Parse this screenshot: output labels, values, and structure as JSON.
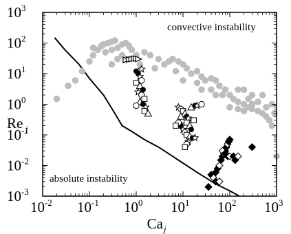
{
  "chart_data": {
    "type": "scatter",
    "title": "",
    "xlabel": "Ca",
    "xlabel_subscript": "j",
    "ylabel": "Re",
    "ylabel_subscript": "j",
    "xscale": "log",
    "yscale": "log",
    "xlim": [
      0.01,
      1000
    ],
    "ylim": [
      0.001,
      1000
    ],
    "x_ticks": [
      {
        "base": "10",
        "exp": "-2"
      },
      {
        "base": "10",
        "exp": "-1"
      },
      {
        "base": "10",
        "exp": "0"
      },
      {
        "base": "10",
        "exp": "1"
      },
      {
        "base": "10",
        "exp": "2"
      },
      {
        "base": "10",
        "exp": "3"
      }
    ],
    "y_ticks": [
      {
        "base": "10",
        "exp": "-3"
      },
      {
        "base": "10",
        "exp": "-2"
      },
      {
        "base": "10",
        "exp": "-1"
      },
      {
        "base": "10",
        "exp": "0"
      },
      {
        "base": "10",
        "exp": "1"
      },
      {
        "base": "10",
        "exp": "2"
      },
      {
        "base": "10",
        "exp": "3"
      }
    ],
    "grid": false,
    "legend": "none",
    "annotations": [
      {
        "text": "convective instability",
        "x": 40,
        "y": 300
      },
      {
        "text": "absolute instability",
        "x": 0.022,
        "y": 0.004
      }
    ],
    "colors": {
      "background_data": "#bdbdbd",
      "boundary": "#000000",
      "markers": "#000000"
    },
    "series": [
      {
        "marker": "curve",
        "color": "#000000",
        "points": [
          [
            0.018,
            150
          ],
          [
            0.03,
            60
          ],
          [
            0.06,
            20
          ],
          [
            0.1,
            7
          ],
          [
            0.2,
            2
          ],
          [
            0.35,
            0.5
          ],
          [
            0.5,
            0.2
          ],
          [
            0.8,
            0.13
          ],
          [
            1.5,
            0.07
          ],
          [
            3,
            0.04
          ],
          [
            6,
            0.02
          ],
          [
            10,
            0.012
          ],
          [
            20,
            0.006
          ],
          [
            50,
            0.0025
          ],
          [
            100,
            0.0015
          ],
          [
            160,
            0.001
          ]
        ]
      },
      {
        "marker": "circle-filled",
        "color": "#bdbdbd",
        "points": [
          [
            0.02,
            1.5
          ],
          [
            0.035,
            4
          ],
          [
            0.05,
            6
          ],
          [
            0.07,
            12
          ],
          [
            0.1,
            25
          ],
          [
            0.12,
            40
          ],
          [
            0.15,
            60
          ],
          [
            0.12,
            70
          ],
          [
            0.18,
            80
          ],
          [
            0.2,
            90
          ],
          [
            0.25,
            100
          ],
          [
            0.3,
            110
          ],
          [
            0.35,
            120
          ],
          [
            0.22,
            50
          ],
          [
            0.3,
            60
          ],
          [
            0.4,
            70
          ],
          [
            0.5,
            90
          ],
          [
            0.6,
            100
          ],
          [
            0.7,
            80
          ],
          [
            0.8,
            60
          ],
          [
            0.5,
            40
          ],
          [
            0.4,
            30
          ],
          [
            0.3,
            20
          ],
          [
            0.6,
            30
          ],
          [
            1,
            40
          ],
          [
            1.5,
            50
          ],
          [
            2,
            40
          ],
          [
            3,
            30
          ],
          [
            1.2,
            20
          ],
          [
            2.5,
            15
          ],
          [
            4,
            20
          ],
          [
            5,
            25
          ],
          [
            6,
            30
          ],
          [
            8,
            25
          ],
          [
            10,
            20
          ],
          [
            7,
            12
          ],
          [
            12,
            15
          ],
          [
            15,
            10
          ],
          [
            20,
            12
          ],
          [
            25,
            8
          ],
          [
            10,
            6
          ],
          [
            20,
            5
          ],
          [
            30,
            6
          ],
          [
            40,
            7
          ],
          [
            50,
            6
          ],
          [
            25,
            3
          ],
          [
            40,
            3
          ],
          [
            60,
            4
          ],
          [
            80,
            3
          ],
          [
            50,
            2
          ],
          [
            70,
            2
          ],
          [
            100,
            2
          ],
          [
            120,
            1.5
          ],
          [
            150,
            1.2
          ],
          [
            200,
            1
          ],
          [
            250,
            1.5
          ],
          [
            300,
            1
          ],
          [
            100,
            0.8
          ],
          [
            150,
            0.7
          ],
          [
            200,
            0.6
          ],
          [
            250,
            0.8
          ],
          [
            300,
            0.7
          ],
          [
            400,
            0.6
          ],
          [
            500,
            0.5
          ],
          [
            600,
            0.4
          ],
          [
            700,
            0.3
          ],
          [
            800,
            0.2
          ],
          [
            400,
            1.2
          ],
          [
            600,
            0.8
          ],
          [
            800,
            1
          ],
          [
            900,
            0.5
          ],
          [
            1000,
            0.02
          ],
          [
            500,
            2
          ],
          [
            300,
            2
          ],
          [
            200,
            3
          ],
          [
            150,
            3
          ]
        ]
      },
      {
        "marker": "triangle-right",
        "color": "#000000",
        "points": [
          [
            0.6,
            28
          ],
          [
            0.7,
            29
          ],
          [
            0.8,
            30
          ],
          [
            0.9,
            31
          ],
          [
            1,
            31
          ],
          [
            1.1,
            30
          ]
        ]
      },
      {
        "marker": "mixed-open",
        "color": "#000000",
        "points": [
          [
            1.1,
            10
          ],
          [
            1.2,
            8
          ],
          [
            1.3,
            6
          ],
          [
            1.0,
            5
          ],
          [
            1.2,
            4
          ],
          [
            1.4,
            3
          ],
          [
            1.1,
            2.5
          ],
          [
            1.3,
            2
          ],
          [
            1.5,
            1.5
          ],
          [
            1.2,
            1.2
          ],
          [
            1.4,
            1
          ],
          [
            1.6,
            0.8
          ],
          [
            1.0,
            0.9
          ],
          [
            1.5,
            0.6
          ],
          [
            1.8,
            0.5
          ],
          [
            1.0,
            12
          ],
          [
            1.3,
            14
          ]
        ]
      },
      {
        "marker": "mixed-open",
        "color": "#000000",
        "points": [
          [
            8,
            0.8
          ],
          [
            9,
            0.7
          ],
          [
            10,
            0.6
          ],
          [
            11,
            0.5
          ],
          [
            12,
            0.4
          ],
          [
            13,
            0.35
          ],
          [
            10,
            0.3
          ],
          [
            12,
            0.25
          ],
          [
            14,
            0.2
          ],
          [
            9,
            0.2
          ],
          [
            10,
            0.15
          ],
          [
            11,
            0.12
          ],
          [
            12,
            0.1
          ],
          [
            14,
            0.09
          ],
          [
            16,
            0.08
          ],
          [
            18,
            0.08
          ],
          [
            8,
            0.25
          ],
          [
            7,
            0.2
          ],
          [
            9,
            0.4
          ],
          [
            15,
            0.15
          ],
          [
            13,
            0.06
          ],
          [
            12,
            0.05
          ],
          [
            11,
            0.04
          ],
          [
            15,
            0.8
          ],
          [
            18,
            0.9
          ],
          [
            20,
            0.9
          ],
          [
            25,
            1
          ],
          [
            17,
            0.3
          ]
        ]
      },
      {
        "marker": "diamond-filled",
        "color": "#000000",
        "points": [
          [
            40,
            0.005
          ],
          [
            45,
            0.004
          ],
          [
            50,
            0.006
          ],
          [
            55,
            0.008
          ],
          [
            60,
            0.01
          ],
          [
            65,
            0.015
          ],
          [
            70,
            0.02
          ],
          [
            75,
            0.025
          ],
          [
            80,
            0.03
          ],
          [
            85,
            0.04
          ],
          [
            90,
            0.05
          ],
          [
            95,
            0.06
          ],
          [
            100,
            0.07
          ],
          [
            70,
            0.03
          ],
          [
            80,
            0.025
          ],
          [
            90,
            0.02
          ],
          [
            100,
            0.02
          ],
          [
            120,
            0.02
          ],
          [
            130,
            0.015
          ],
          [
            150,
            0.02
          ],
          [
            35,
            0.002
          ],
          [
            50,
            0.003
          ],
          [
            60,
            0.003
          ],
          [
            300,
            0.04
          ]
        ]
      }
    ]
  }
}
